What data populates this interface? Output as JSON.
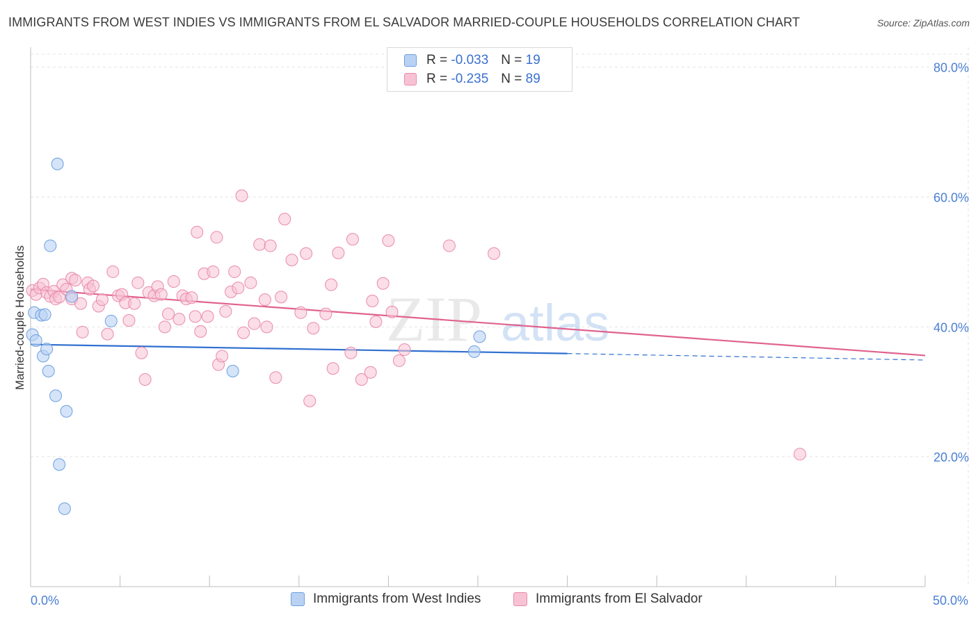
{
  "title": "IMMIGRANTS FROM WEST INDIES VS IMMIGRANTS FROM EL SALVADOR MARRIED-COUPLE HOUSEHOLDS CORRELATION CHART",
  "source": "Source: ZipAtlas.com",
  "watermark": {
    "zip": "ZIP",
    "atlas": "atlas"
  },
  "legend": {
    "rows": [
      {
        "r_label": "R =",
        "r_value": "-0.033",
        "n_label": "N =",
        "n_value": "19"
      },
      {
        "r_label": "R =",
        "r_value": "-0.235",
        "n_label": "N =",
        "n_value": "89"
      }
    ]
  },
  "bottom_legend": [
    "Immigrants from West Indies",
    "Immigrants from El Salvador"
  ],
  "colors": {
    "blue_fill": "#b9d2f3",
    "blue_stroke": "#6d9fe0",
    "blue_line": "#2f6fd0",
    "pink_fill": "#f7c3d4",
    "pink_stroke": "#e98aab",
    "pink_line": "#e0628e",
    "grid": "#e3e3e3",
    "tick_text": "#4a7fd4"
  },
  "chart_data": {
    "type": "scatter",
    "title": "IMMIGRANTS FROM WEST INDIES VS IMMIGRANTS FROM EL SALVADOR MARRIED-COUPLE HOUSEHOLDS CORRELATION CHART",
    "xlabel": "",
    "ylabel": "Married-couple Households",
    "xlim": [
      0,
      50
    ],
    "ylim": [
      0,
      82
    ],
    "x_tick_labels": [
      "0.0%",
      "50.0%"
    ],
    "y_ticks": [
      20,
      40,
      60,
      80
    ],
    "y_tick_labels": [
      "20.0%",
      "40.0%",
      "60.0%",
      "80.0%"
    ],
    "grid": true,
    "series": [
      {
        "name": "Immigrants from West Indies",
        "R": -0.033,
        "N": 19,
        "trend": {
          "x": [
            0,
            30
          ],
          "y": [
            37.3,
            35.9
          ],
          "dashed_to": [
            50,
            34.9
          ]
        },
        "points": [
          {
            "x": 0.1,
            "y": 38.8
          },
          {
            "x": 0.2,
            "y": 42.2
          },
          {
            "x": 0.3,
            "y": 37.9
          },
          {
            "x": 0.6,
            "y": 41.8
          },
          {
            "x": 0.7,
            "y": 35.5
          },
          {
            "x": 0.8,
            "y": 41.9
          },
          {
            "x": 0.9,
            "y": 36.6
          },
          {
            "x": 1.0,
            "y": 33.2
          },
          {
            "x": 1.1,
            "y": 52.5
          },
          {
            "x": 1.4,
            "y": 29.4
          },
          {
            "x": 1.5,
            "y": 65.1
          },
          {
            "x": 1.6,
            "y": 18.8
          },
          {
            "x": 1.9,
            "y": 12.0
          },
          {
            "x": 2.0,
            "y": 27.0
          },
          {
            "x": 2.3,
            "y": 44.7
          },
          {
            "x": 4.5,
            "y": 40.9
          },
          {
            "x": 11.3,
            "y": 33.2
          },
          {
            "x": 24.8,
            "y": 36.2
          },
          {
            "x": 25.1,
            "y": 38.5
          }
        ]
      },
      {
        "name": "Immigrants from El Salvador",
        "R": -0.235,
        "N": 89,
        "trend": {
          "x": [
            0,
            50
          ],
          "y": [
            45.8,
            35.6
          ]
        },
        "points": [
          {
            "x": 0.1,
            "y": 45.6
          },
          {
            "x": 0.3,
            "y": 45.0
          },
          {
            "x": 0.5,
            "y": 46.0
          },
          {
            "x": 0.7,
            "y": 46.6
          },
          {
            "x": 0.9,
            "y": 45.3
          },
          {
            "x": 1.1,
            "y": 44.7
          },
          {
            "x": 1.3,
            "y": 45.5
          },
          {
            "x": 1.4,
            "y": 44.3
          },
          {
            "x": 1.6,
            "y": 44.6
          },
          {
            "x": 1.8,
            "y": 46.5
          },
          {
            "x": 2.0,
            "y": 45.8
          },
          {
            "x": 2.3,
            "y": 44.3
          },
          {
            "x": 2.3,
            "y": 47.5
          },
          {
            "x": 2.5,
            "y": 47.2
          },
          {
            "x": 2.8,
            "y": 43.6
          },
          {
            "x": 2.9,
            "y": 39.2
          },
          {
            "x": 3.2,
            "y": 46.8
          },
          {
            "x": 3.3,
            "y": 45.8
          },
          {
            "x": 3.5,
            "y": 46.3
          },
          {
            "x": 3.8,
            "y": 43.2
          },
          {
            "x": 4.0,
            "y": 44.2
          },
          {
            "x": 4.3,
            "y": 38.9
          },
          {
            "x": 4.6,
            "y": 48.5
          },
          {
            "x": 4.9,
            "y": 44.8
          },
          {
            "x": 5.1,
            "y": 45.0
          },
          {
            "x": 5.3,
            "y": 43.7
          },
          {
            "x": 5.5,
            "y": 41.0
          },
          {
            "x": 5.8,
            "y": 43.6
          },
          {
            "x": 6.0,
            "y": 46.8
          },
          {
            "x": 6.2,
            "y": 36.0
          },
          {
            "x": 6.4,
            "y": 31.9
          },
          {
            "x": 6.6,
            "y": 45.3
          },
          {
            "x": 6.9,
            "y": 44.8
          },
          {
            "x": 7.1,
            "y": 46.2
          },
          {
            "x": 7.3,
            "y": 45.0
          },
          {
            "x": 7.5,
            "y": 40.0
          },
          {
            "x": 7.7,
            "y": 42.0
          },
          {
            "x": 8.0,
            "y": 47.0
          },
          {
            "x": 8.3,
            "y": 41.2
          },
          {
            "x": 8.5,
            "y": 44.8
          },
          {
            "x": 8.7,
            "y": 44.3
          },
          {
            "x": 9.0,
            "y": 44.5
          },
          {
            "x": 9.2,
            "y": 41.6
          },
          {
            "x": 9.3,
            "y": 54.6
          },
          {
            "x": 9.5,
            "y": 39.3
          },
          {
            "x": 9.7,
            "y": 48.2
          },
          {
            "x": 9.9,
            "y": 41.6
          },
          {
            "x": 10.2,
            "y": 48.5
          },
          {
            "x": 10.4,
            "y": 53.8
          },
          {
            "x": 10.5,
            "y": 34.2
          },
          {
            "x": 10.7,
            "y": 35.5
          },
          {
            "x": 10.9,
            "y": 42.4
          },
          {
            "x": 11.2,
            "y": 45.4
          },
          {
            "x": 11.4,
            "y": 48.5
          },
          {
            "x": 11.6,
            "y": 46.0
          },
          {
            "x": 11.8,
            "y": 60.2
          },
          {
            "x": 11.9,
            "y": 39.1
          },
          {
            "x": 12.3,
            "y": 46.8
          },
          {
            "x": 12.5,
            "y": 40.5
          },
          {
            "x": 12.8,
            "y": 52.7
          },
          {
            "x": 13.1,
            "y": 44.2
          },
          {
            "x": 13.2,
            "y": 40.0
          },
          {
            "x": 13.4,
            "y": 52.5
          },
          {
            "x": 13.7,
            "y": 32.2
          },
          {
            "x": 14.0,
            "y": 44.6
          },
          {
            "x": 14.2,
            "y": 56.6
          },
          {
            "x": 14.6,
            "y": 50.3
          },
          {
            "x": 15.1,
            "y": 42.2
          },
          {
            "x": 15.4,
            "y": 51.3
          },
          {
            "x": 15.6,
            "y": 28.6
          },
          {
            "x": 15.8,
            "y": 39.8
          },
          {
            "x": 16.5,
            "y": 42.0
          },
          {
            "x": 16.8,
            "y": 46.5
          },
          {
            "x": 16.9,
            "y": 33.6
          },
          {
            "x": 17.2,
            "y": 51.4
          },
          {
            "x": 17.9,
            "y": 36.0
          },
          {
            "x": 18.0,
            "y": 53.5
          },
          {
            "x": 18.5,
            "y": 31.9
          },
          {
            "x": 19.0,
            "y": 33.0
          },
          {
            "x": 19.1,
            "y": 44.0
          },
          {
            "x": 19.3,
            "y": 40.8
          },
          {
            "x": 19.7,
            "y": 46.7
          },
          {
            "x": 20.0,
            "y": 53.3
          },
          {
            "x": 20.2,
            "y": 42.3
          },
          {
            "x": 20.6,
            "y": 34.8
          },
          {
            "x": 20.9,
            "y": 36.5
          },
          {
            "x": 23.4,
            "y": 52.5
          },
          {
            "x": 25.9,
            "y": 51.3
          },
          {
            "x": 43.0,
            "y": 20.4
          }
        ]
      }
    ]
  }
}
